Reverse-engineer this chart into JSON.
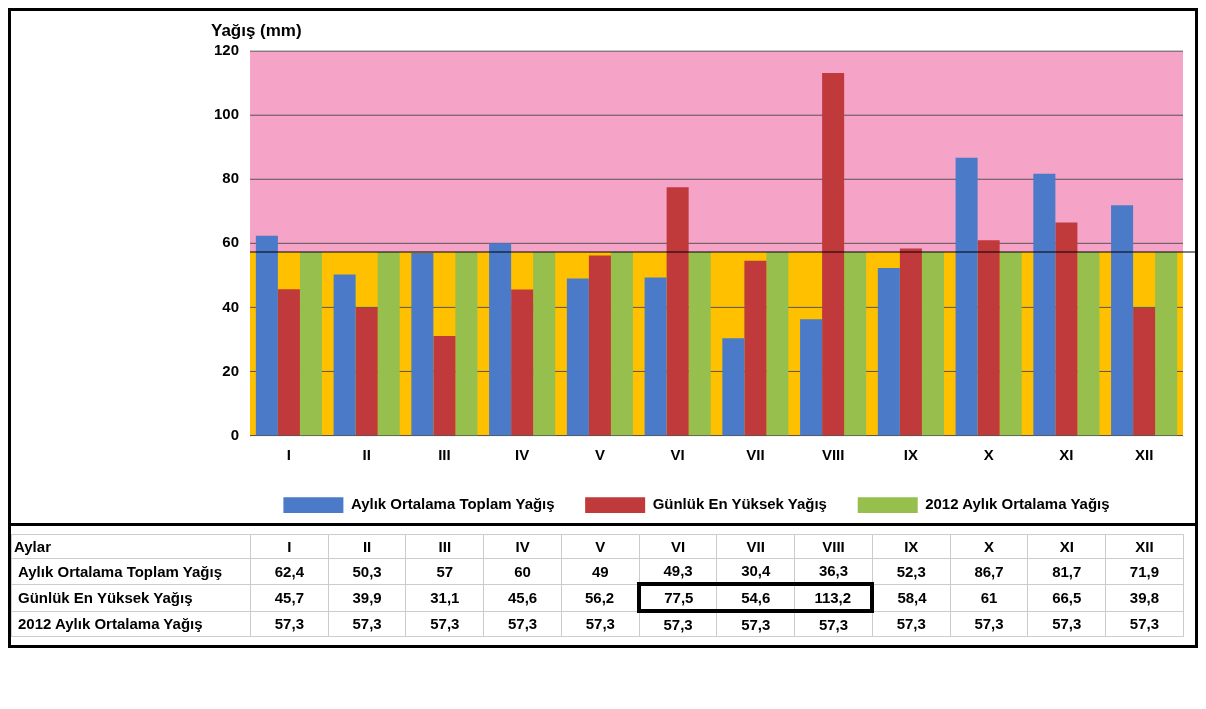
{
  "chart_data": {
    "type": "bar",
    "ylabel": "Yağış (mm)",
    "categories": [
      "I",
      "II",
      "III",
      "IV",
      "V",
      "VI",
      "VII",
      "VIII",
      "IX",
      "X",
      "XI",
      "XII"
    ],
    "series": [
      {
        "name": "Aylık Ortalama Toplam Yağış",
        "color": "#4a7ac8",
        "values": [
          62.4,
          50.3,
          57,
          60,
          49,
          49.3,
          30.4,
          36.3,
          52.3,
          86.7,
          81.7,
          71.9
        ],
        "value_labels": [
          "62,4",
          "50,3",
          "57",
          "60",
          "49",
          "49,3",
          "30,4",
          "36,3",
          "52,3",
          "86,7",
          "81,7",
          "71,9"
        ]
      },
      {
        "name": "Günlük En Yüksek Yağış",
        "color": "#c0393b",
        "values": [
          45.7,
          39.9,
          31.1,
          45.6,
          56.2,
          77.5,
          54.6,
          113.2,
          58.4,
          61,
          66.5,
          39.8
        ],
        "value_labels": [
          "45,7",
          "39,9",
          "31,1",
          "45,6",
          "56,2",
          "77,5",
          "54,6",
          "113,2",
          "58,4",
          "61",
          "66,5",
          "39,8"
        ]
      },
      {
        "name": "2012 Aylık Ortalama Yağış",
        "color": "#96bf4d",
        "values": [
          57.3,
          57.3,
          57.3,
          57.3,
          57.3,
          57.3,
          57.3,
          57.3,
          57.3,
          57.3,
          57.3,
          57.3
        ],
        "value_labels": [
          "57,3",
          "57,3",
          "57,3",
          "57,3",
          "57,3",
          "57,3",
          "57,3",
          "57,3",
          "57,3",
          "57,3",
          "57,3",
          "57,3"
        ]
      }
    ],
    "ylim": [
      0,
      120
    ],
    "yticks": [
      0,
      20,
      40,
      60,
      80,
      100,
      120
    ],
    "grid": "y",
    "legend": "bottom",
    "bands": [
      {
        "axis": "y",
        "from": 0,
        "to": 57.3,
        "color": "#ffc000"
      },
      {
        "axis": "y",
        "from": 57.3,
        "to": 120,
        "color": "#f5a3c7"
      }
    ],
    "ref_lines": [
      {
        "axis": "y",
        "value": 57.3,
        "color": "#000000"
      }
    ],
    "annotations": [
      "Aylar"
    ]
  }
}
